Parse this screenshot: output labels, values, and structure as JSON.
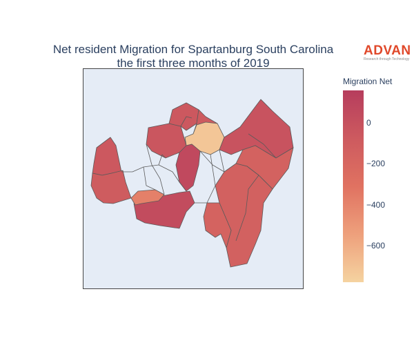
{
  "title": {
    "line1": "Net resident Migration for Spartanburg South Carolina",
    "line2": "the first three months of 2019"
  },
  "logo": {
    "brand": "ADVAN",
    "tagline": "Research through Technology"
  },
  "colorbar": {
    "title": "Migration Net",
    "min": -780,
    "max": 160,
    "ticks": [
      {
        "value": 0,
        "label": "0"
      },
      {
        "value": -200,
        "label": "−200"
      },
      {
        "value": -400,
        "label": "−400"
      },
      {
        "value": -600,
        "label": "−600"
      }
    ],
    "colors": [
      "#f5d3a0",
      "#eea07c",
      "#e07261",
      "#cd5a5f",
      "#b63d5d"
    ]
  },
  "chart_data": {
    "type": "choropleth",
    "regions": [
      {
        "name": "west",
        "value": -60
      },
      {
        "name": "southwest",
        "value": -90
      },
      {
        "name": "northwest",
        "value": -40
      },
      {
        "name": "north-1",
        "value": -60
      },
      {
        "name": "north-2",
        "value": -80
      },
      {
        "name": "central-light",
        "value": -720
      },
      {
        "name": "northeast",
        "value": -20
      },
      {
        "name": "east",
        "value": -150
      },
      {
        "name": "southeast",
        "value": -140
      },
      {
        "name": "south",
        "value": -160
      },
      {
        "name": "central-dark",
        "value": 60
      },
      {
        "name": "south-west-large",
        "value": 40
      },
      {
        "name": "central-orange",
        "value": -380
      }
    ]
  }
}
